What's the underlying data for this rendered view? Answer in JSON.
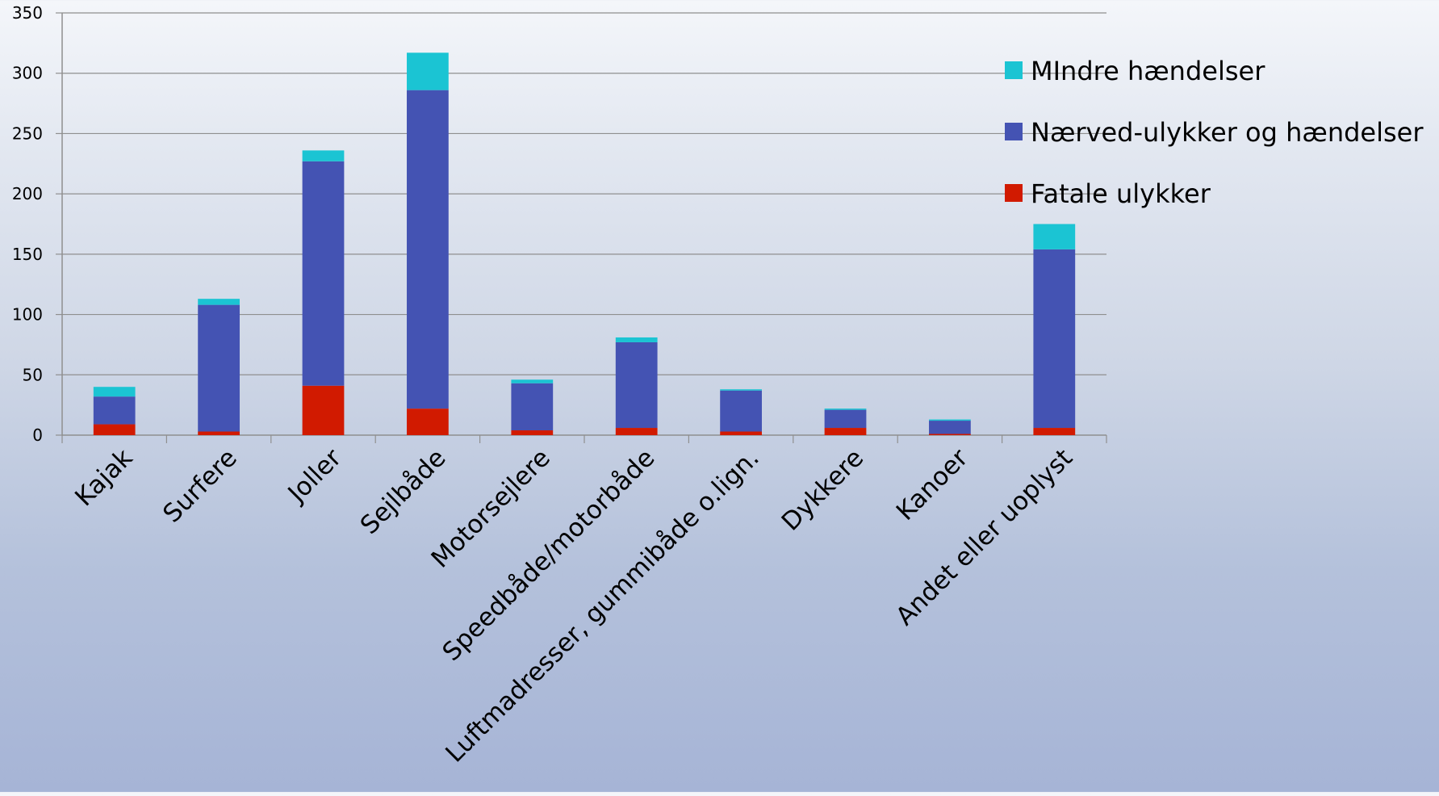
{
  "chart_data": {
    "type": "bar",
    "stacked": true,
    "title": "",
    "xlabel": "",
    "ylabel": "",
    "ylim": [
      0,
      350
    ],
    "yticks": [
      0,
      50,
      100,
      150,
      200,
      250,
      300,
      350
    ],
    "grid": true,
    "legend_position": "right",
    "categories": [
      "Kajak",
      "Surfere",
      "Joller",
      "Sejlbåde",
      "Motorsejlere",
      "Speedbåde/motorbåde",
      "Luftmadresser, gummibåde o.lign.",
      "Dykkere",
      "Kanoer",
      "Andet eller uoplyst"
    ],
    "series": [
      {
        "name": "Fatale ulykker",
        "color": "#d11a00",
        "values": [
          9,
          3,
          41,
          22,
          4,
          6,
          3,
          6,
          1,
          6
        ]
      },
      {
        "name": "Nærved-ulykker og hændelser",
        "color": "#4453b3",
        "values": [
          23,
          105,
          186,
          264,
          39,
          71,
          34,
          15,
          11,
          148
        ]
      },
      {
        "name": "MIndre hændelser",
        "color": "#1bc4d3",
        "values": [
          8,
          5,
          9,
          31,
          3,
          4,
          1,
          1,
          1,
          21
        ]
      }
    ],
    "legend_order": [
      "MIndre hændelser",
      "Nærved-ulykker og hændelser",
      "Fatale ulykker"
    ]
  }
}
